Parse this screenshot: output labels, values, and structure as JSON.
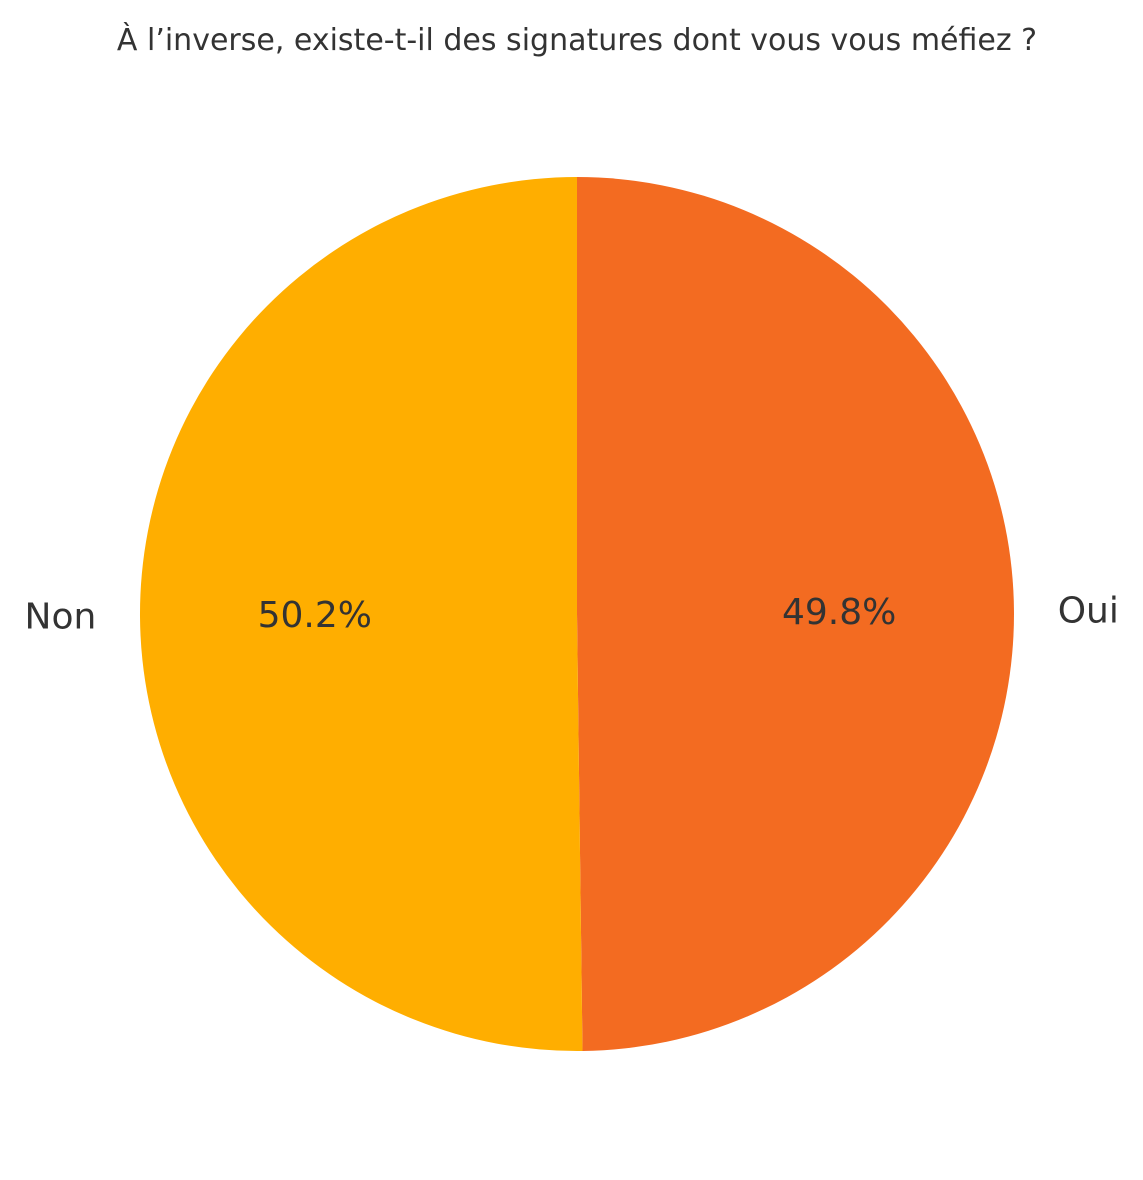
{
  "chart_data": {
    "type": "pie",
    "title": "À l’inverse, existe-t-il des signatures dont vous vous méfiez ?",
    "slices": [
      {
        "label": "Oui",
        "value": 49.8,
        "display": "49.8%",
        "color": "#F36B21"
      },
      {
        "label": "Non",
        "value": 50.2,
        "display": "50.2%",
        "color": "#FFAE00"
      }
    ],
    "start": "top",
    "direction": "clockwise",
    "legend": "none"
  }
}
